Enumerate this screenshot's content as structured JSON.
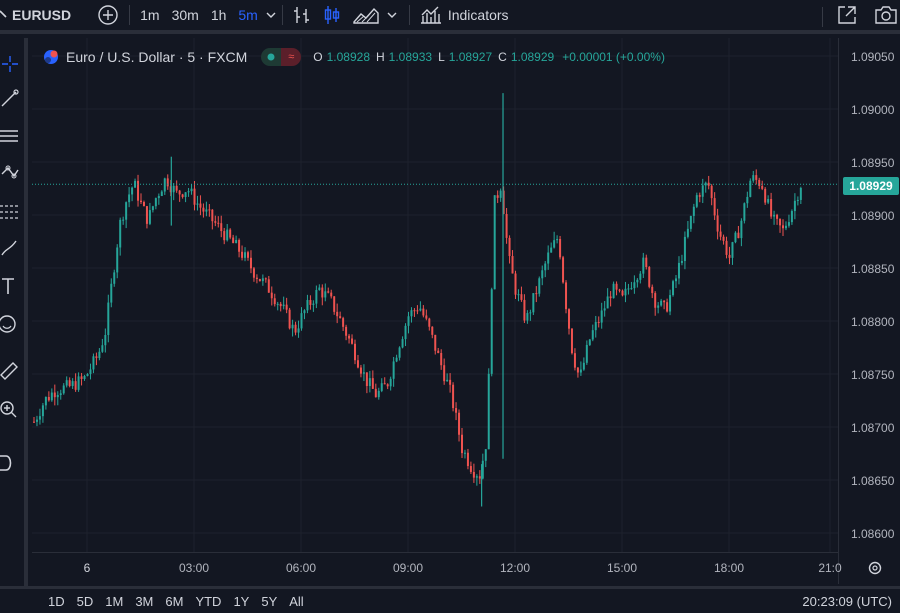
{
  "toolbar": {
    "symbol": "EURUSD",
    "intervals": [
      "1m",
      "30m",
      "1h",
      "5m"
    ],
    "active_interval": "5m",
    "indicators_label": "Indicators"
  },
  "legend": {
    "title": "Euro / U.S. Dollar · 5 · FXCM",
    "o_key": "O",
    "o_val": "1.08928",
    "h_key": "H",
    "h_val": "1.08933",
    "l_key": "L",
    "l_val": "1.08927",
    "c_key": "C",
    "c_val": "1.08929",
    "change": "+0.00001 (+0.00%)"
  },
  "price_axis": {
    "labels": [
      "1.09050",
      "1.09000",
      "1.08950",
      "1.08900",
      "1.08850",
      "1.08800",
      "1.08750",
      "1.08700",
      "1.08650",
      "1.08600"
    ],
    "last_price": "1.08929"
  },
  "time_axis": {
    "labels": [
      "6",
      "03:00",
      "06:00",
      "09:00",
      "12:00",
      "15:00",
      "18:00",
      "21:0"
    ]
  },
  "bottom_bar": {
    "ranges": [
      "1D",
      "5D",
      "1M",
      "3M",
      "6M",
      "YTD",
      "1Y",
      "5Y",
      "All"
    ],
    "clock": "20:23:09 (UTC)"
  },
  "colors": {
    "up": "#26a69a",
    "down": "#ef5350",
    "background": "#131722",
    "grid": "#1e222d",
    "accent": "#2962ff"
  },
  "chart_data": {
    "type": "candlestick",
    "ylim": [
      1.0859,
      1.0906
    ],
    "x_range_hours": [
      0,
      21
    ],
    "interval_minutes": 5,
    "close_path": [
      [
        0.0,
        1.08705
      ],
      [
        0.3,
        1.08725
      ],
      [
        0.6,
        1.08735
      ],
      [
        1.0,
        1.08738
      ],
      [
        1.4,
        1.08745
      ],
      [
        1.8,
        1.08768
      ],
      [
        2.0,
        1.0879
      ],
      [
        2.2,
        1.0884
      ],
      [
        2.4,
        1.0889
      ],
      [
        2.6,
        1.08915
      ],
      [
        2.8,
        1.0893
      ],
      [
        3.0,
        1.0891
      ],
      [
        3.2,
        1.08895
      ],
      [
        3.4,
        1.08915
      ],
      [
        3.7,
        1.08935
      ],
      [
        4.0,
        1.0892
      ],
      [
        4.3,
        1.08925
      ],
      [
        4.6,
        1.0891
      ],
      [
        5.0,
        1.08895
      ],
      [
        5.4,
        1.0888
      ],
      [
        5.8,
        1.08865
      ],
      [
        6.2,
        1.08845
      ],
      [
        6.6,
        1.0883
      ],
      [
        7.0,
        1.0881
      ],
      [
        7.3,
        1.0879
      ],
      [
        7.6,
        1.0881
      ],
      [
        8.0,
        1.0883
      ],
      [
        8.3,
        1.0882
      ],
      [
        8.6,
        1.088
      ],
      [
        9.0,
        1.0877
      ],
      [
        9.3,
        1.08745
      ],
      [
        9.6,
        1.0873
      ],
      [
        9.9,
        1.0874
      ],
      [
        10.2,
        1.08775
      ],
      [
        10.5,
        1.08805
      ],
      [
        10.8,
        1.08815
      ],
      [
        11.1,
        1.0879
      ],
      [
        11.4,
        1.0876
      ],
      [
        11.7,
        1.0873
      ],
      [
        12.0,
        1.0868
      ],
      [
        12.3,
        1.0866
      ],
      [
        12.5,
        1.08655
      ],
      [
        12.7,
        1.0869
      ],
      [
        12.9,
        1.0891
      ],
      [
        13.1,
        1.0893
      ],
      [
        13.3,
        1.0886
      ],
      [
        13.5,
        1.0883
      ],
      [
        13.8,
        1.088
      ],
      [
        14.1,
        1.0883
      ],
      [
        14.4,
        1.0886
      ],
      [
        14.7,
        1.0888
      ],
      [
        14.9,
        1.0882
      ],
      [
        15.1,
        1.0877
      ],
      [
        15.3,
        1.08745
      ],
      [
        15.6,
        1.08785
      ],
      [
        15.9,
        1.08805
      ],
      [
        16.2,
        1.0883
      ],
      [
        16.5,
        1.0882
      ],
      [
        16.8,
        1.0884
      ],
      [
        17.1,
        1.08855
      ],
      [
        17.4,
        1.0882
      ],
      [
        17.7,
        1.0881
      ],
      [
        18.0,
        1.0884
      ],
      [
        18.3,
        1.0888
      ],
      [
        18.6,
        1.0892
      ],
      [
        18.9,
        1.0893
      ],
      [
        19.2,
        1.08885
      ],
      [
        19.5,
        1.0886
      ],
      [
        19.8,
        1.0889
      ],
      [
        20.1,
        1.08935
      ],
      [
        20.4,
        1.0893
      ],
      [
        20.7,
        1.08895
      ],
      [
        21.0,
        1.08885
      ],
      [
        21.3,
        1.0891
      ],
      [
        21.5,
        1.08929
      ]
    ],
    "spikes": [
      {
        "x": 13.15,
        "high": 1.09015,
        "low": 1.0867
      },
      {
        "x": 12.55,
        "high": 1.08665,
        "low": 1.08625
      },
      {
        "x": 3.85,
        "high": 1.08955,
        "low": 1.0889
      }
    ],
    "last_price": 1.08929
  }
}
